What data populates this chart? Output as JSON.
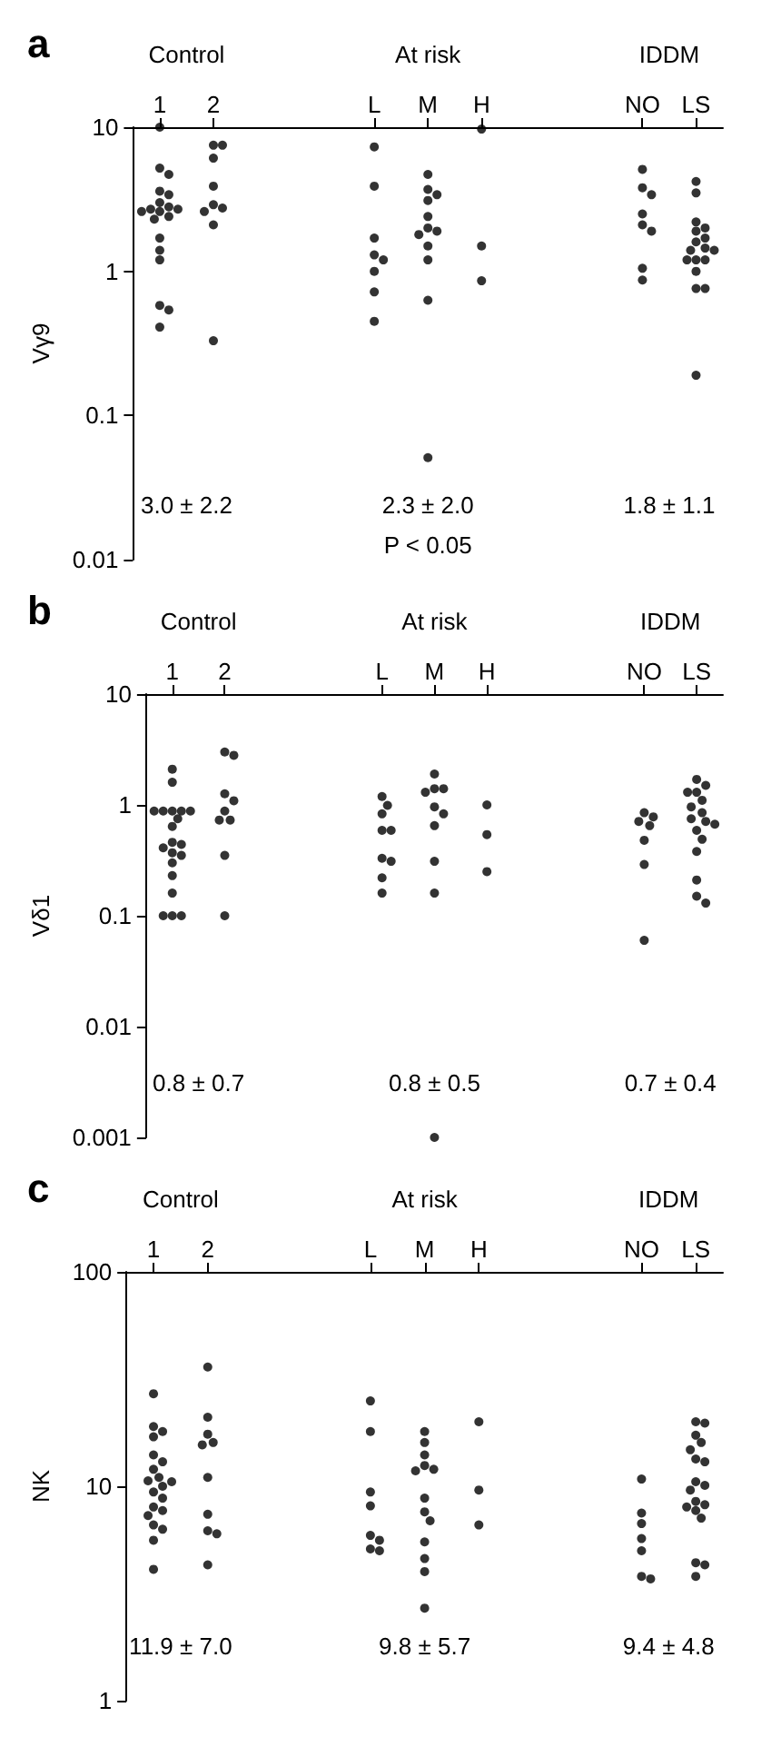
{
  "chart_data": [
    {
      "type": "scatter",
      "title": "a",
      "ylabel": "Vγ9",
      "categories": [
        "1",
        "2",
        null,
        null,
        "L",
        "M",
        "H",
        null,
        null,
        "NO",
        "LS"
      ],
      "log": true,
      "ylim": [
        0.01,
        10
      ],
      "yticks": [
        0.01,
        0.1,
        1,
        10
      ],
      "marker": "circle",
      "grid": false,
      "annotations": [
        "Control",
        "At risk",
        "IDDM",
        "3.0 ± 2.2",
        "2.3 ± 2.0",
        "1.8 ± 1.1",
        "P < 0.05"
      ],
      "series": [
        {
          "color": "#000000",
          "x": [
            "1",
            "1",
            "1",
            "1",
            "1",
            "1",
            "1",
            "1",
            "1",
            "1",
            "1",
            "1",
            "1",
            "1",
            "1",
            "1",
            "1",
            "1",
            "1",
            "2",
            "2",
            "2",
            "2",
            "2",
            "2",
            "2",
            "2",
            "2",
            "L",
            "L",
            "L",
            "L",
            "L",
            "L",
            "L",
            "L",
            "M",
            "M",
            "M",
            "M",
            "M",
            "M",
            "M",
            "M",
            "M",
            "M",
            "M",
            "M",
            "H",
            "H",
            "H",
            "NO",
            "NO",
            "NO",
            "NO",
            "NO",
            "NO",
            "NO",
            "NO",
            "LS",
            "LS",
            "LS",
            "LS",
            "LS",
            "LS",
            "LS",
            "LS",
            "LS",
            "LS",
            "LS",
            "LS",
            "LS",
            "LS",
            "LS",
            "LS",
            "LS"
          ],
          "values": [
            10,
            5.2,
            4.7,
            3.6,
            3.4,
            3.0,
            2.8,
            2.7,
            2.7,
            2.6,
            2.6,
            2.4,
            2.3,
            1.7,
            1.4,
            1.2,
            0.58,
            0.54,
            0.41,
            7.5,
            7.5,
            6.1,
            3.9,
            2.9,
            2.75,
            2.6,
            2.1,
            0.33,
            7.3,
            3.9,
            1.7,
            1.3,
            1.2,
            1.0,
            0.72,
            0.45,
            4.7,
            3.7,
            3.4,
            3.1,
            2.4,
            2.0,
            1.9,
            1.8,
            1.5,
            1.2,
            0.63,
            0.051,
            9.7,
            1.5,
            0.86,
            5.1,
            3.8,
            3.4,
            2.5,
            2.1,
            1.9,
            1.05,
            0.87,
            4.2,
            3.5,
            2.2,
            2.0,
            1.9,
            1.7,
            1.6,
            1.45,
            1.4,
            1.4,
            1.2,
            1.2,
            1.2,
            1.0,
            0.76,
            0.76,
            0.19
          ]
        }
      ]
    },
    {
      "type": "scatter",
      "title": "b",
      "ylabel": "Vδ1",
      "categories": [
        "1",
        "2",
        null,
        null,
        "L",
        "M",
        "H",
        null,
        null,
        "NO",
        "LS"
      ],
      "log": true,
      "ylim": [
        0.001,
        10
      ],
      "yticks": [
        0.001,
        0.01,
        0.1,
        1,
        10
      ],
      "marker": "circle",
      "grid": false,
      "annotations": [
        "Control",
        "At risk",
        "IDDM",
        "0.8 ± 0.7",
        "0.8 ± 0.5",
        "0.7 ± 0.4"
      ],
      "series": [
        {
          "color": "#000000",
          "x": [
            "1",
            "1",
            "1",
            "1",
            "1",
            "1",
            "1",
            "1",
            "1",
            "1",
            "1",
            "1",
            "1",
            "1",
            "1",
            "1",
            "1",
            "1",
            "1",
            "1",
            "2",
            "2",
            "2",
            "2",
            "2",
            "2",
            "2",
            "2",
            "2",
            "L",
            "L",
            "L",
            "L",
            "L",
            "L",
            "L",
            "L",
            "L",
            "M",
            "M",
            "M",
            "M",
            "M",
            "M",
            "M",
            "M",
            "M",
            "M",
            "H",
            "H",
            "H",
            "NO",
            "NO",
            "NO",
            "NO",
            "NO",
            "NO",
            "NO",
            "LS",
            "LS",
            "LS",
            "LS",
            "LS",
            "LS",
            "LS",
            "LS",
            "LS",
            "LS",
            "LS",
            "LS",
            "LS",
            "LS",
            "LS",
            "LS"
          ],
          "values": [
            2.1,
            1.6,
            0.88,
            0.88,
            0.88,
            0.88,
            0.88,
            0.75,
            0.64,
            0.46,
            0.44,
            0.41,
            0.37,
            0.35,
            0.3,
            0.23,
            0.16,
            0.1,
            0.1,
            0.1,
            3.0,
            2.8,
            1.26,
            1.09,
            0.88,
            0.73,
            0.73,
            0.35,
            0.1,
            1.19,
            0.99,
            0.83,
            0.59,
            0.59,
            0.33,
            0.31,
            0.22,
            0.16,
            1.9,
            1.4,
            1.4,
            1.3,
            0.96,
            0.83,
            0.65,
            0.31,
            0.16,
            0.001,
            1.0,
            0.54,
            0.25,
            0.85,
            0.78,
            0.71,
            0.65,
            0.48,
            0.29,
            0.06,
            1.7,
            1.5,
            1.3,
            1.3,
            1.1,
            0.96,
            0.85,
            0.75,
            0.71,
            0.67,
            0.59,
            0.49,
            0.38,
            0.21,
            0.15,
            0.13
          ]
        }
      ]
    },
    {
      "type": "scatter",
      "title": "c",
      "ylabel": "NK",
      "categories": [
        "1",
        "2",
        null,
        null,
        "L",
        "M",
        "H",
        null,
        null,
        "NO",
        "LS"
      ],
      "log": true,
      "ylim": [
        1,
        100
      ],
      "yticks": [
        1,
        10,
        100
      ],
      "marker": "circle",
      "grid": false,
      "annotations": [
        "Control",
        "At risk",
        "IDDM",
        "11.9 ± 7.0",
        "9.8 ± 5.7",
        "9.4 ± 4.8"
      ],
      "series": [
        {
          "color": "#000000",
          "x": [
            "1",
            "1",
            "1",
            "1",
            "1",
            "1",
            "1",
            "1",
            "1",
            "1",
            "1",
            "1",
            "1",
            "1",
            "1",
            "1",
            "1",
            "1",
            "1",
            "1",
            "2",
            "2",
            "2",
            "2",
            "2",
            "2",
            "2",
            "2",
            "2",
            "2",
            "L",
            "L",
            "L",
            "L",
            "L",
            "L",
            "L",
            "L",
            "M",
            "M",
            "M",
            "M",
            "M",
            "M",
            "M",
            "M",
            "M",
            "M",
            "M",
            "M",
            "M",
            "H",
            "H",
            "H",
            "NO",
            "NO",
            "NO",
            "NO",
            "NO",
            "NO",
            "NO",
            "LS",
            "LS",
            "LS",
            "LS",
            "LS",
            "LS",
            "LS",
            "LS",
            "LS",
            "LS",
            "LS",
            "LS",
            "LS",
            "LS",
            "LS",
            "LS",
            "LS",
            "LS"
          ],
          "values": [
            27,
            19,
            18,
            17,
            14,
            13,
            12,
            11,
            10.6,
            10.5,
            10,
            9.4,
            8.8,
            8.0,
            7.7,
            7.3,
            6.6,
            6.3,
            5.6,
            4.1,
            36,
            21,
            17.5,
            16,
            15.6,
            11,
            7.4,
            6.2,
            6.0,
            4.3,
            25,
            18,
            9.4,
            8.1,
            5.9,
            5.6,
            5.1,
            5.0,
            18,
            16,
            14,
            12.5,
            12,
            11.8,
            8.8,
            7.6,
            6.9,
            5.5,
            4.6,
            4.0,
            2.7,
            20,
            9.6,
            6.6,
            10.8,
            7.5,
            6.7,
            5.7,
            5.0,
            3.8,
            3.7,
            20,
            19.7,
            17.3,
            16,
            14.8,
            13.4,
            13,
            10.5,
            10.1,
            9.6,
            8.5,
            8.2,
            8.0,
            7.7,
            7.1,
            4.4,
            4.3,
            3.8
          ]
        }
      ]
    }
  ]
}
